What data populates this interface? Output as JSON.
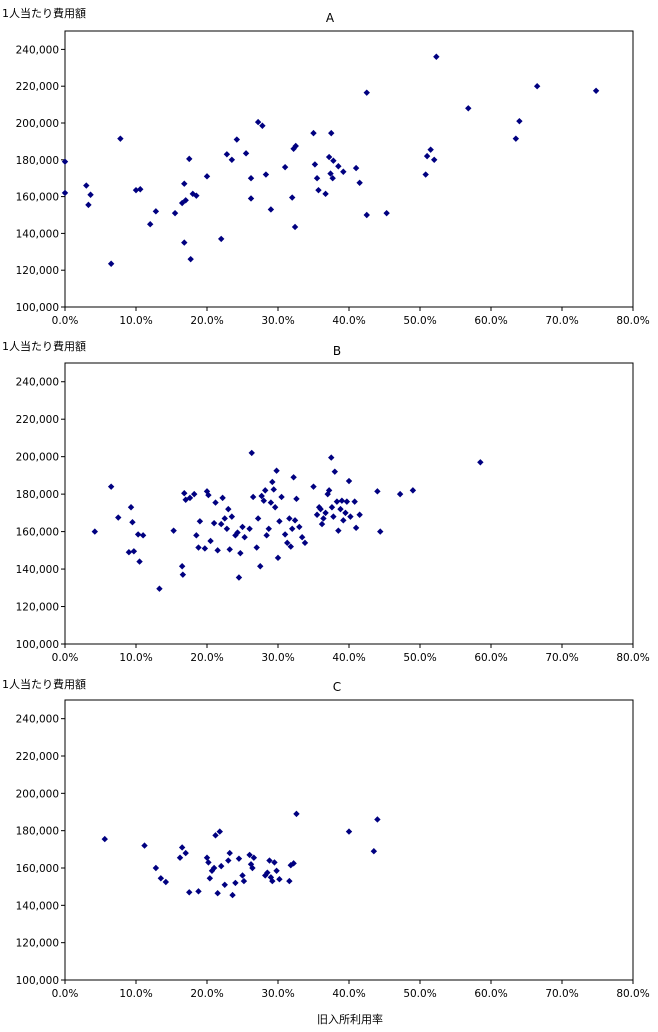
{
  "chart_data": [
    {
      "type": "scatter",
      "title": "A",
      "ylabel": "1人当たり費用額",
      "xlabel": "",
      "xlim": [
        0,
        0.8
      ],
      "ylim": [
        100000,
        250000
      ],
      "x_ticks": [
        "0.0%",
        "10.0%",
        "20.0%",
        "30.0%",
        "40.0%",
        "50.0%",
        "60.0%",
        "70.0%",
        "80.0%"
      ],
      "y_ticks": [
        "100,000",
        "120,000",
        "140,000",
        "160,000",
        "180,000",
        "200,000",
        "220,000",
        "240,000"
      ],
      "marker_color": "#000080",
      "points": [
        [
          0.0,
          179000
        ],
        [
          0.0,
          162000
        ],
        [
          0.03,
          166000
        ],
        [
          0.033,
          155500
        ],
        [
          0.036,
          161000
        ],
        [
          0.065,
          123500
        ],
        [
          0.078,
          191500
        ],
        [
          0.1,
          163500
        ],
        [
          0.106,
          164000
        ],
        [
          0.12,
          145000
        ],
        [
          0.128,
          152000
        ],
        [
          0.155,
          151000
        ],
        [
          0.165,
          156500
        ],
        [
          0.168,
          135000
        ],
        [
          0.168,
          167000
        ],
        [
          0.17,
          158000
        ],
        [
          0.175,
          180500
        ],
        [
          0.177,
          126000
        ],
        [
          0.18,
          161500
        ],
        [
          0.185,
          160500
        ],
        [
          0.2,
          171000
        ],
        [
          0.22,
          137000
        ],
        [
          0.228,
          183000
        ],
        [
          0.235,
          180000
        ],
        [
          0.242,
          191000
        ],
        [
          0.255,
          183500
        ],
        [
          0.262,
          159000
        ],
        [
          0.262,
          170000
        ],
        [
          0.272,
          200500
        ],
        [
          0.278,
          198500
        ],
        [
          0.283,
          172000
        ],
        [
          0.29,
          153000
        ],
        [
          0.31,
          176000
        ],
        [
          0.32,
          159500
        ],
        [
          0.322,
          186000
        ],
        [
          0.325,
          187500
        ],
        [
          0.324,
          143500
        ],
        [
          0.35,
          194500
        ],
        [
          0.352,
          177500
        ],
        [
          0.355,
          170000
        ],
        [
          0.357,
          163500
        ],
        [
          0.367,
          161500
        ],
        [
          0.372,
          181500
        ],
        [
          0.374,
          172500
        ],
        [
          0.375,
          194500
        ],
        [
          0.377,
          170000
        ],
        [
          0.378,
          179500
        ],
        [
          0.385,
          176500
        ],
        [
          0.392,
          173500
        ],
        [
          0.41,
          175500
        ],
        [
          0.415,
          167500
        ],
        [
          0.425,
          216500
        ],
        [
          0.425,
          150000
        ],
        [
          0.453,
          151000
        ],
        [
          0.508,
          172000
        ],
        [
          0.51,
          182000
        ],
        [
          0.515,
          185500
        ],
        [
          0.52,
          180000
        ],
        [
          0.523,
          236000
        ],
        [
          0.568,
          208000
        ],
        [
          0.635,
          191500
        ],
        [
          0.64,
          201000
        ],
        [
          0.665,
          220000
        ],
        [
          0.748,
          217500
        ]
      ]
    },
    {
      "type": "scatter",
      "title": "B",
      "ylabel": "1人当たり費用額",
      "xlabel": "",
      "xlim": [
        0,
        0.8
      ],
      "ylim": [
        100000,
        250000
      ],
      "x_ticks": [
        "0.0%",
        "10.0%",
        "20.0%",
        "30.0%",
        "40.0%",
        "50.0%",
        "60.0%",
        "70.0%",
        "80.0%"
      ],
      "y_ticks": [
        "100,000",
        "120,000",
        "140,000",
        "160,000",
        "180,000",
        "200,000",
        "220,000",
        "240,000"
      ],
      "marker_color": "#000080",
      "points": [
        [
          0.042,
          160000
        ],
        [
          0.065,
          184000
        ],
        [
          0.075,
          167500
        ],
        [
          0.09,
          149000
        ],
        [
          0.093,
          173000
        ],
        [
          0.095,
          165000
        ],
        [
          0.097,
          149500
        ],
        [
          0.103,
          158500
        ],
        [
          0.105,
          144000
        ],
        [
          0.11,
          158000
        ],
        [
          0.133,
          129500
        ],
        [
          0.153,
          160500
        ],
        [
          0.165,
          141500
        ],
        [
          0.166,
          137000
        ],
        [
          0.168,
          180500
        ],
        [
          0.17,
          177000
        ],
        [
          0.176,
          178000
        ],
        [
          0.182,
          180000
        ],
        [
          0.185,
          158000
        ],
        [
          0.188,
          151500
        ],
        [
          0.19,
          165500
        ],
        [
          0.197,
          151000
        ],
        [
          0.2,
          181500
        ],
        [
          0.202,
          179500
        ],
        [
          0.205,
          155000
        ],
        [
          0.21,
          164500
        ],
        [
          0.212,
          175500
        ],
        [
          0.215,
          150000
        ],
        [
          0.22,
          164000
        ],
        [
          0.222,
          178000
        ],
        [
          0.225,
          167000
        ],
        [
          0.228,
          161500
        ],
        [
          0.23,
          172000
        ],
        [
          0.232,
          150500
        ],
        [
          0.235,
          168000
        ],
        [
          0.24,
          158000
        ],
        [
          0.243,
          159500
        ],
        [
          0.245,
          135500
        ],
        [
          0.247,
          148500
        ],
        [
          0.25,
          162500
        ],
        [
          0.253,
          157000
        ],
        [
          0.26,
          161500
        ],
        [
          0.263,
          202000
        ],
        [
          0.265,
          178500
        ],
        [
          0.27,
          151500
        ],
        [
          0.272,
          167000
        ],
        [
          0.275,
          141500
        ],
        [
          0.277,
          179000
        ],
        [
          0.28,
          176500
        ],
        [
          0.282,
          182000
        ],
        [
          0.284,
          158000
        ],
        [
          0.287,
          161500
        ],
        [
          0.29,
          175500
        ],
        [
          0.292,
          186500
        ],
        [
          0.294,
          182500
        ],
        [
          0.296,
          173000
        ],
        [
          0.298,
          192500
        ],
        [
          0.3,
          146000
        ],
        [
          0.302,
          165500
        ],
        [
          0.305,
          178500
        ],
        [
          0.31,
          158500
        ],
        [
          0.313,
          154000
        ],
        [
          0.316,
          167000
        ],
        [
          0.318,
          152000
        ],
        [
          0.32,
          161500
        ],
        [
          0.322,
          189000
        ],
        [
          0.324,
          166000
        ],
        [
          0.326,
          177500
        ],
        [
          0.33,
          162500
        ],
        [
          0.334,
          157000
        ],
        [
          0.338,
          154000
        ],
        [
          0.35,
          184000
        ],
        [
          0.355,
          169000
        ],
        [
          0.358,
          173000
        ],
        [
          0.36,
          172000
        ],
        [
          0.362,
          164000
        ],
        [
          0.364,
          167000
        ],
        [
          0.367,
          170000
        ],
        [
          0.37,
          180000
        ],
        [
          0.372,
          182000
        ],
        [
          0.375,
          199500
        ],
        [
          0.376,
          173000
        ],
        [
          0.378,
          168000
        ],
        [
          0.38,
          192000
        ],
        [
          0.383,
          176000
        ],
        [
          0.385,
          160500
        ],
        [
          0.388,
          172000
        ],
        [
          0.39,
          176500
        ],
        [
          0.392,
          166000
        ],
        [
          0.395,
          170000
        ],
        [
          0.397,
          176000
        ],
        [
          0.4,
          187000
        ],
        [
          0.402,
          168000
        ],
        [
          0.408,
          176000
        ],
        [
          0.41,
          162000
        ],
        [
          0.415,
          169000
        ],
        [
          0.44,
          181500
        ],
        [
          0.444,
          160000
        ],
        [
          0.472,
          180000
        ],
        [
          0.49,
          182000
        ],
        [
          0.585,
          197000
        ]
      ]
    },
    {
      "type": "scatter",
      "title": "C",
      "ylabel": "1人当たり費用額",
      "xlabel": "旧入所利用率",
      "xlim": [
        0,
        0.8
      ],
      "ylim": [
        100000,
        250000
      ],
      "x_ticks": [
        "0.0%",
        "10.0%",
        "20.0%",
        "30.0%",
        "40.0%",
        "50.0%",
        "60.0%",
        "70.0%",
        "80.0%"
      ],
      "y_ticks": [
        "100,000",
        "120,000",
        "140,000",
        "160,000",
        "180,000",
        "200,000",
        "220,000",
        "240,000"
      ],
      "marker_color": "#000080",
      "points": [
        [
          0.056,
          175500
        ],
        [
          0.112,
          172000
        ],
        [
          0.128,
          160000
        ],
        [
          0.135,
          154500
        ],
        [
          0.142,
          152500
        ],
        [
          0.162,
          165500
        ],
        [
          0.165,
          171000
        ],
        [
          0.17,
          168000
        ],
        [
          0.175,
          147000
        ],
        [
          0.188,
          147500
        ],
        [
          0.2,
          165500
        ],
        [
          0.202,
          163000
        ],
        [
          0.204,
          154500
        ],
        [
          0.207,
          158500
        ],
        [
          0.21,
          160000
        ],
        [
          0.212,
          177500
        ],
        [
          0.215,
          146500
        ],
        [
          0.218,
          179500
        ],
        [
          0.22,
          161000
        ],
        [
          0.225,
          151000
        ],
        [
          0.23,
          164000
        ],
        [
          0.232,
          168000
        ],
        [
          0.236,
          145500
        ],
        [
          0.24,
          152000
        ],
        [
          0.245,
          165000
        ],
        [
          0.25,
          156000
        ],
        [
          0.252,
          153000
        ],
        [
          0.26,
          167000
        ],
        [
          0.262,
          162000
        ],
        [
          0.264,
          160000
        ],
        [
          0.266,
          165500
        ],
        [
          0.282,
          156000
        ],
        [
          0.285,
          157500
        ],
        [
          0.288,
          164000
        ],
        [
          0.29,
          155000
        ],
        [
          0.292,
          153000
        ],
        [
          0.295,
          163000
        ],
        [
          0.298,
          158500
        ],
        [
          0.302,
          154000
        ],
        [
          0.316,
          153000
        ],
        [
          0.318,
          161500
        ],
        [
          0.322,
          162500
        ],
        [
          0.326,
          189000
        ],
        [
          0.4,
          179500
        ],
        [
          0.435,
          169000
        ],
        [
          0.44,
          186000
        ]
      ]
    }
  ]
}
